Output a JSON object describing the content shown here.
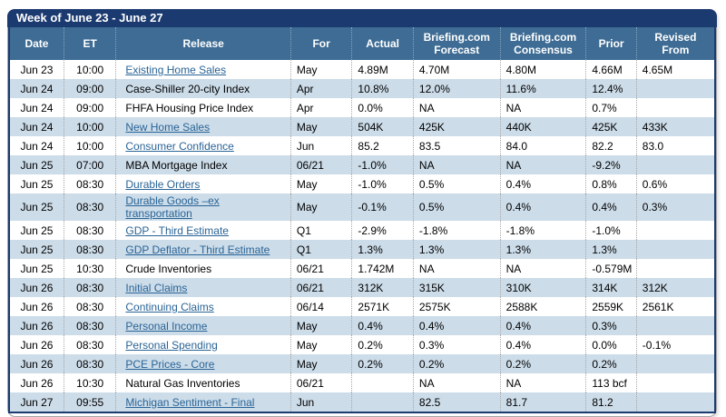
{
  "colors": {
    "title_bar": "#1b3a70",
    "header_bg": "#3e6c94",
    "row_alt_bg": "#ccdce9",
    "link": "#2a6496",
    "table_border": "#1b3a70",
    "frame_border": "#a6a6a6"
  },
  "week_title": "Week of June 23 - June 27",
  "table": {
    "columns": [
      "Date",
      "ET",
      "Release",
      "For",
      "Actual",
      "Briefing.com\nForecast",
      "Briefing.com\nConsensus",
      "Prior",
      "Revised\nFrom"
    ],
    "rows": [
      {
        "date": "Jun 23",
        "et": "10:00",
        "release": "Existing Home Sales",
        "is_link": true,
        "for_period": "May",
        "actual": "4.89M",
        "forecast": "4.70M",
        "consensus": "4.80M",
        "prior": "4.66M",
        "revised_from": "4.65M"
      },
      {
        "date": "Jun 24",
        "et": "09:00",
        "release": "Case-Shiller 20-city Index",
        "is_link": false,
        "for_period": "Apr",
        "actual": "10.8%",
        "forecast": "12.0%",
        "consensus": "11.6%",
        "prior": "12.4%",
        "revised_from": ""
      },
      {
        "date": "Jun 24",
        "et": "09:00",
        "release": "FHFA Housing Price Index",
        "is_link": false,
        "for_period": "Apr",
        "actual": "0.0%",
        "forecast": "NA",
        "consensus": "NA",
        "prior": "0.7%",
        "revised_from": ""
      },
      {
        "date": "Jun 24",
        "et": "10:00",
        "release": "New Home Sales",
        "is_link": true,
        "for_period": "May",
        "actual": "504K",
        "forecast": "425K",
        "consensus": "440K",
        "prior": "425K",
        "revised_from": "433K"
      },
      {
        "date": "Jun 24",
        "et": "10:00",
        "release": "Consumer Confidence",
        "is_link": true,
        "for_period": "Jun",
        "actual": "85.2",
        "forecast": "83.5",
        "consensus": "84.0",
        "prior": "82.2",
        "revised_from": "83.0"
      },
      {
        "date": "Jun 25",
        "et": "07:00",
        "release": "MBA Mortgage Index",
        "is_link": false,
        "for_period": "06/21",
        "actual": "-1.0%",
        "forecast": "NA",
        "consensus": "NA",
        "prior": "-9.2%",
        "revised_from": ""
      },
      {
        "date": "Jun 25",
        "et": "08:30",
        "release": "Durable Orders",
        "is_link": true,
        "for_period": "May",
        "actual": "-1.0%",
        "forecast": "0.5%",
        "consensus": "0.4%",
        "prior": "0.8%",
        "revised_from": "0.6%"
      },
      {
        "date": "Jun 25",
        "et": "08:30",
        "release": "Durable Goods –ex transportation",
        "is_link": true,
        "for_period": "May",
        "actual": "-0.1%",
        "forecast": "0.5%",
        "consensus": "0.4%",
        "prior": "0.4%",
        "revised_from": "0.3%"
      },
      {
        "date": "Jun 25",
        "et": "08:30",
        "release": "GDP - Third Estimate",
        "is_link": true,
        "for_period": "Q1",
        "actual": "-2.9%",
        "forecast": "-1.8%",
        "consensus": "-1.8%",
        "prior": "-1.0%",
        "revised_from": ""
      },
      {
        "date": "Jun 25",
        "et": "08:30",
        "release": "GDP Deflator - Third Estimate",
        "is_link": true,
        "for_period": "Q1",
        "actual": "1.3%",
        "forecast": "1.3%",
        "consensus": "1.3%",
        "prior": "1.3%",
        "revised_from": ""
      },
      {
        "date": "Jun 25",
        "et": "10:30",
        "release": "Crude Inventories",
        "is_link": false,
        "for_period": "06/21",
        "actual": "1.742M",
        "forecast": "NA",
        "consensus": "NA",
        "prior": "-0.579M",
        "revised_from": ""
      },
      {
        "date": "Jun 26",
        "et": "08:30",
        "release": "Initial Claims",
        "is_link": true,
        "for_period": "06/21",
        "actual": "312K",
        "forecast": "315K",
        "consensus": "310K",
        "prior": "314K",
        "revised_from": "312K"
      },
      {
        "date": "Jun 26",
        "et": "08:30",
        "release": "Continuing Claims",
        "is_link": true,
        "for_period": "06/14",
        "actual": "2571K",
        "forecast": "2575K",
        "consensus": "2588K",
        "prior": "2559K",
        "revised_from": "2561K"
      },
      {
        "date": "Jun 26",
        "et": "08:30",
        "release": "Personal Income",
        "is_link": true,
        "for_period": "May",
        "actual": "0.4%",
        "forecast": "0.4%",
        "consensus": "0.4%",
        "prior": "0.3%",
        "revised_from": ""
      },
      {
        "date": "Jun 26",
        "et": "08:30",
        "release": "Personal Spending",
        "is_link": true,
        "for_period": "May",
        "actual": "0.2%",
        "forecast": "0.3%",
        "consensus": "0.4%",
        "prior": "0.0%",
        "revised_from": "-0.1%"
      },
      {
        "date": "Jun 26",
        "et": "08:30",
        "release": "PCE Prices - Core",
        "is_link": true,
        "for_period": "May",
        "actual": "0.2%",
        "forecast": "0.2%",
        "consensus": "0.2%",
        "prior": "0.2%",
        "revised_from": ""
      },
      {
        "date": "Jun 26",
        "et": "10:30",
        "release": "Natural Gas Inventories",
        "is_link": false,
        "for_period": "06/21",
        "actual": "",
        "forecast": "NA",
        "consensus": "NA",
        "prior": "113 bcf",
        "revised_from": ""
      },
      {
        "date": "Jun 27",
        "et": "09:55",
        "release": "Michigan Sentiment - Final",
        "is_link": true,
        "for_period": "Jun",
        "actual": "",
        "forecast": "82.5",
        "consensus": "81.7",
        "prior": "81.2",
        "revised_from": ""
      }
    ]
  }
}
